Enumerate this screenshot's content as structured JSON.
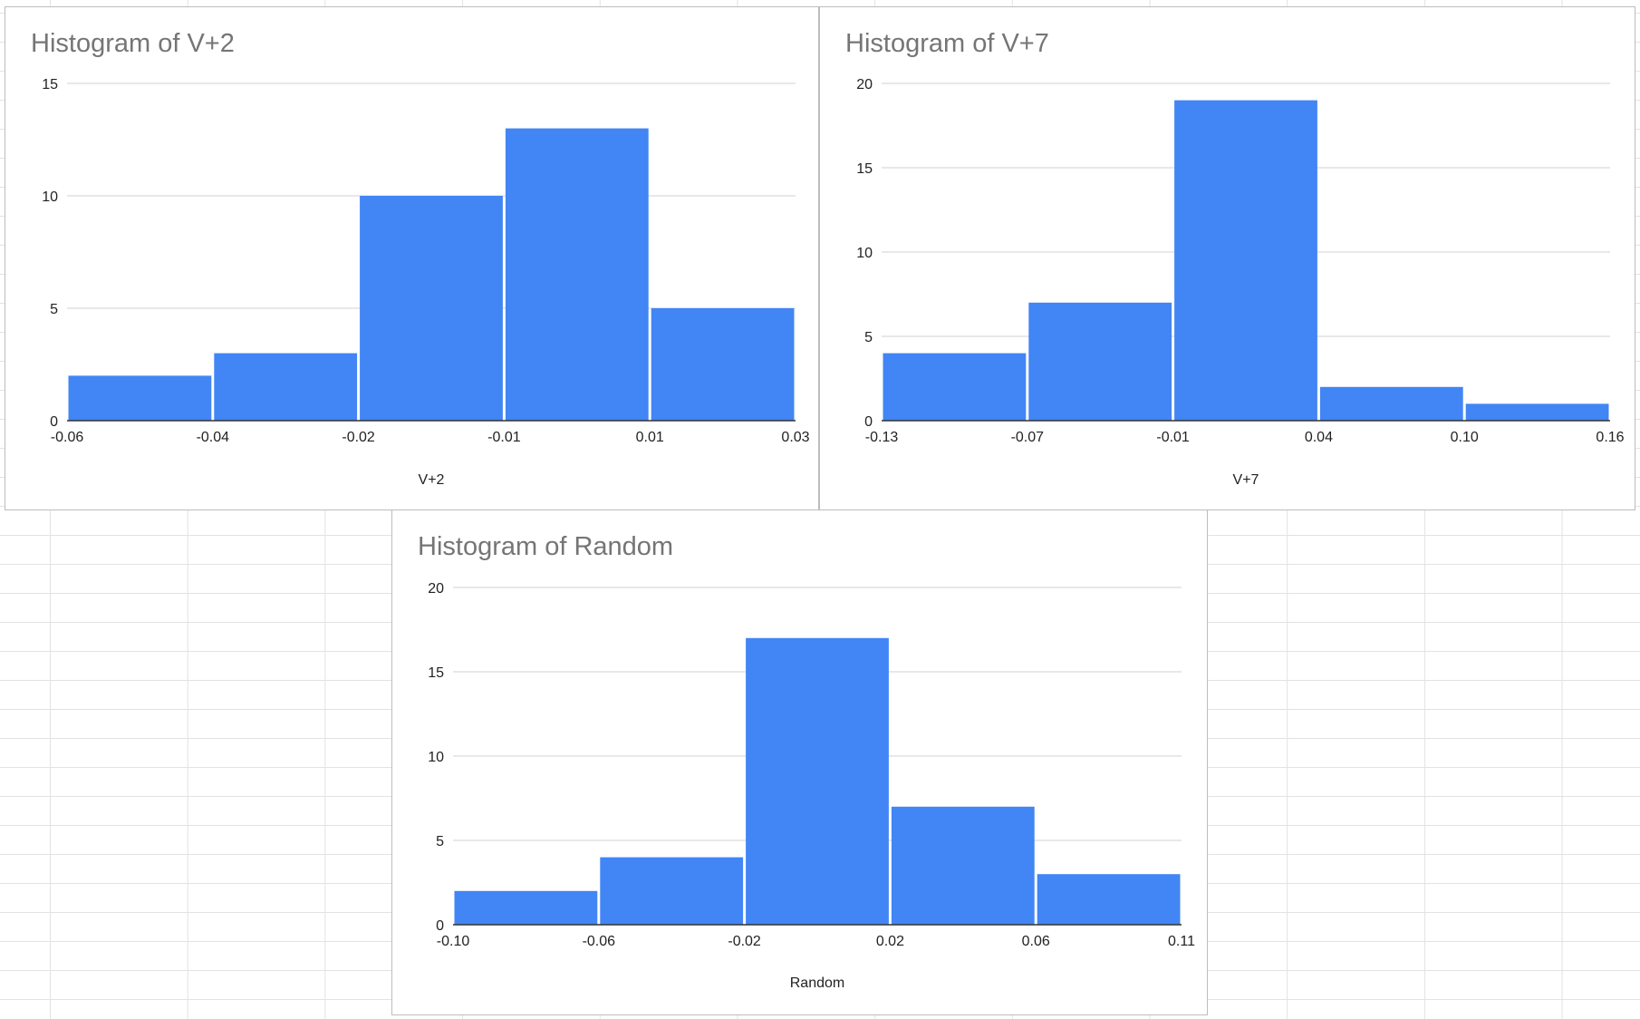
{
  "charts": [
    {
      "title": "Histogram of V+2",
      "chart_data": {
        "type": "bar",
        "title": "Histogram of V+2",
        "xlabel": "V+2",
        "ylabel": "",
        "x_ticks": [
          "-0.06",
          "-0.04",
          "-0.02",
          "-0.01",
          "0.01",
          "0.03"
        ],
        "y_ticks": [
          "0",
          "5",
          "10",
          "15"
        ],
        "ylim": [
          0,
          15
        ],
        "values": [
          2,
          3,
          10,
          13,
          5
        ],
        "color": "#4285f4",
        "grid": true,
        "legend": "none"
      }
    },
    {
      "title": "Histogram of V+7",
      "chart_data": {
        "type": "bar",
        "title": "Histogram of V+7",
        "xlabel": "V+7",
        "ylabel": "",
        "x_ticks": [
          "-0.13",
          "-0.07",
          "-0.01",
          "0.04",
          "0.10",
          "0.16"
        ],
        "y_ticks": [
          "0",
          "5",
          "10",
          "15",
          "20"
        ],
        "ylim": [
          0,
          20
        ],
        "values": [
          4,
          7,
          19,
          2,
          1
        ],
        "color": "#4285f4",
        "grid": true,
        "legend": "none"
      }
    },
    {
      "title": "Histogram of Random",
      "chart_data": {
        "type": "bar",
        "title": "Histogram of Random",
        "xlabel": "Random",
        "ylabel": "",
        "x_ticks": [
          "-0.10",
          "-0.06",
          "-0.02",
          "0.02",
          "0.06",
          "0.11"
        ],
        "y_ticks": [
          "0",
          "5",
          "10",
          "15",
          "20"
        ],
        "ylim": [
          0,
          20
        ],
        "values": [
          2,
          4,
          17,
          7,
          3
        ],
        "color": "#4285f4",
        "grid": true,
        "legend": "none"
      }
    }
  ]
}
